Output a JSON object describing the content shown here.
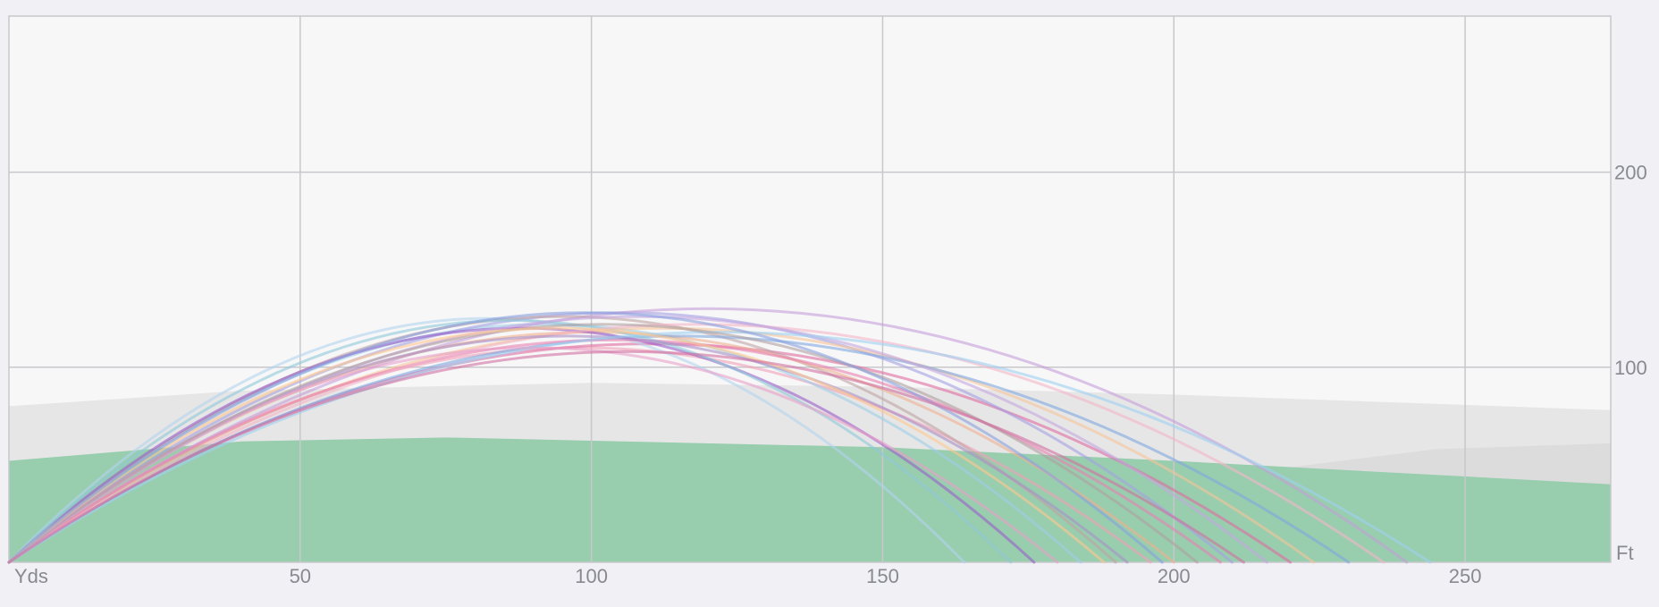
{
  "chart_data": {
    "type": "line",
    "title": "",
    "xlabel": "Yds",
    "ylabel": "Ft",
    "xlim": [
      0,
      275
    ],
    "ylim": [
      0,
      280
    ],
    "x_ticks": [
      50,
      100,
      150,
      200,
      250
    ],
    "y_ticks": [
      100,
      200
    ],
    "x_unit_label": "Yds",
    "y_unit_label": "Ft",
    "grid": true,
    "colors": {
      "background": "#f0f0f5",
      "plot_area": "#f7f7f8",
      "grid": "#c8c8cc",
      "rough_band": "#e6e6e7",
      "rough_band_right": "#dcdcdd",
      "fairway": "#98cdae",
      "tick_text": "#888a90"
    },
    "terrain": {
      "rough_band_top": [
        [
          0,
          80
        ],
        [
          40,
          88
        ],
        [
          100,
          92
        ],
        [
          150,
          90
        ],
        [
          200,
          86
        ],
        [
          275,
          78
        ]
      ],
      "rough_band_right_top": [
        [
          218,
          48
        ],
        [
          245,
          58
        ],
        [
          275,
          61
        ]
      ],
      "fairway_top": [
        [
          0,
          52
        ],
        [
          40,
          62
        ],
        [
          75,
          64
        ],
        [
          150,
          59
        ],
        [
          200,
          52
        ],
        [
          275,
          40
        ]
      ]
    },
    "series": [
      {
        "color": "#f2a0b8",
        "values": [
          [
            0,
            0
          ],
          [
            98,
            110
          ],
          [
            196,
            0
          ]
        ]
      },
      {
        "color": "#e06aa0",
        "values": [
          [
            0,
            0
          ],
          [
            110,
            112
          ],
          [
            220,
            0
          ]
        ]
      },
      {
        "color": "#b3d4ef",
        "values": [
          [
            0,
            0
          ],
          [
            82,
            125
          ],
          [
            164,
            0
          ]
        ]
      },
      {
        "color": "#9ecfe8",
        "values": [
          [
            0,
            0
          ],
          [
            92,
            122
          ],
          [
            184,
            0
          ]
        ]
      },
      {
        "color": "#a4a0e3",
        "values": [
          [
            0,
            0
          ],
          [
            105,
            128
          ],
          [
            210,
            0
          ]
        ]
      },
      {
        "color": "#c49fd9",
        "values": [
          [
            0,
            0
          ],
          [
            120,
            130
          ],
          [
            240,
            0
          ]
        ]
      },
      {
        "color": "#bfa3a3",
        "values": [
          [
            0,
            0
          ],
          [
            95,
            126
          ],
          [
            190,
            0
          ]
        ]
      },
      {
        "color": "#f5c59a",
        "values": [
          [
            0,
            0
          ],
          [
            112,
            120
          ],
          [
            224,
            0
          ]
        ]
      },
      {
        "color": "#f0b090",
        "values": [
          [
            0,
            0
          ],
          [
            100,
            118
          ],
          [
            200,
            0
          ]
        ]
      },
      {
        "color": "#7fa7e0",
        "values": [
          [
            0,
            0
          ],
          [
            115,
            116
          ],
          [
            230,
            0
          ]
        ]
      },
      {
        "color": "#9a5ec9",
        "values": [
          [
            0,
            0
          ],
          [
            88,
            120
          ],
          [
            176,
            0
          ]
        ]
      },
      {
        "color": "#e880b0",
        "values": [
          [
            0,
            0
          ],
          [
            104,
            114
          ],
          [
            208,
            0
          ]
        ]
      },
      {
        "color": "#8fc8d8",
        "values": [
          [
            0,
            0
          ],
          [
            86,
            124
          ],
          [
            172,
            0
          ]
        ]
      },
      {
        "color": "#f4b6c8",
        "values": [
          [
            0,
            0
          ],
          [
            118,
            122
          ],
          [
            236,
            0
          ]
        ]
      },
      {
        "color": "#a890c8",
        "values": [
          [
            0,
            0
          ],
          [
            96,
            116
          ],
          [
            192,
            0
          ]
        ]
      },
      {
        "color": "#c5a6e0",
        "values": [
          [
            0,
            0
          ],
          [
            108,
            126
          ],
          [
            216,
            0
          ]
        ]
      },
      {
        "color": "#9ed0f0",
        "values": [
          [
            0,
            0
          ],
          [
            122,
            118
          ],
          [
            244,
            0
          ]
        ]
      },
      {
        "color": "#e8a0c8",
        "values": [
          [
            0,
            0
          ],
          [
            90,
            110
          ],
          [
            180,
            0
          ]
        ]
      },
      {
        "color": "#b0a0a0",
        "values": [
          [
            0,
            0
          ],
          [
            102,
            122
          ],
          [
            204,
            0
          ]
        ]
      },
      {
        "color": "#ffc890",
        "values": [
          [
            0,
            0
          ],
          [
            94,
            120
          ],
          [
            188,
            0
          ]
        ]
      },
      {
        "color": "#88a0e0",
        "values": [
          [
            0,
            0
          ],
          [
            99,
            128
          ],
          [
            198,
            0
          ]
        ]
      },
      {
        "color": "#d070a0",
        "values": [
          [
            0,
            0
          ],
          [
            106,
            108
          ],
          [
            212,
            0
          ]
        ]
      }
    ]
  }
}
